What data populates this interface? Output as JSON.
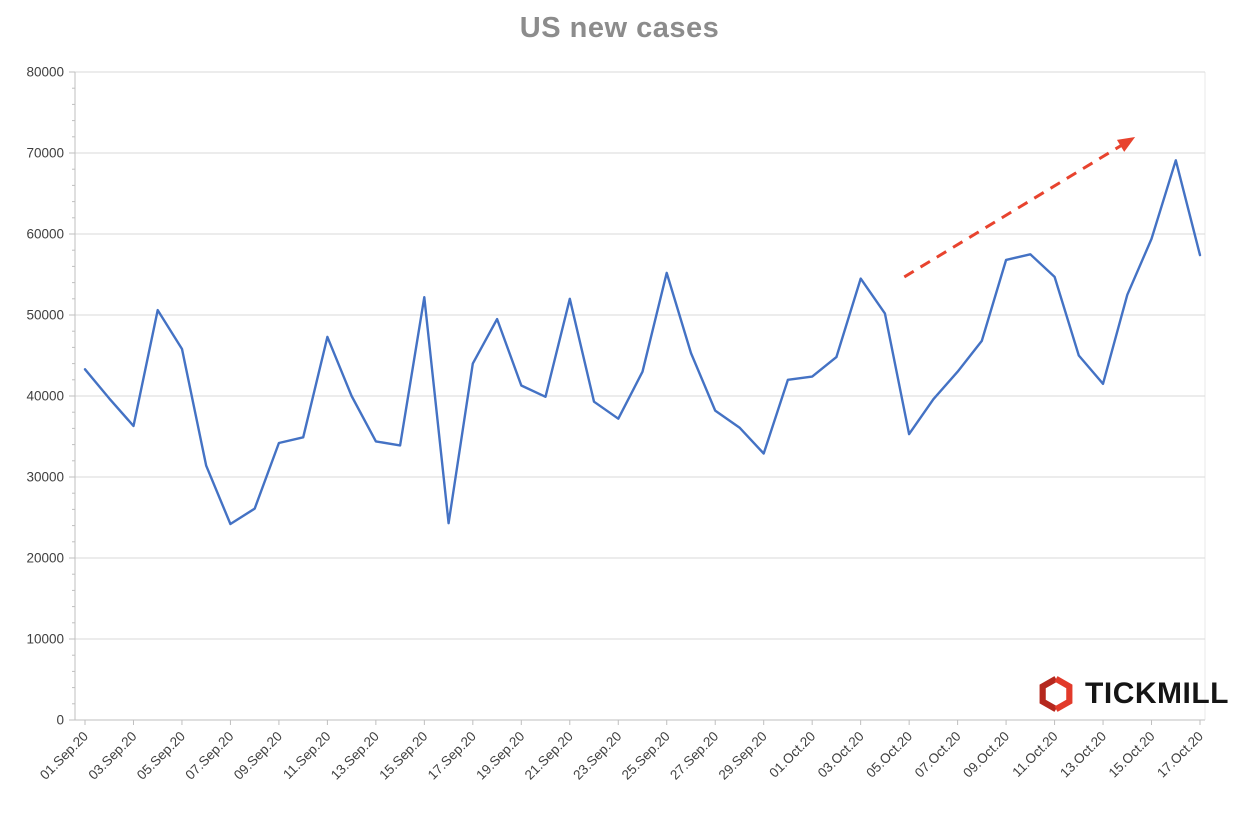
{
  "logo": {
    "text": "TICKMILL",
    "icon": "tickmill-hexagon-mark"
  },
  "colors": {
    "line": "#4472c4",
    "arrow": "#e8432e",
    "gridline": "#d9d9d9",
    "axis": "#bfbfbf",
    "tick_label": "#404040",
    "title": "#8c8c8c",
    "logo_red": "#e23a2a",
    "logo_dark_red": "#b5281e",
    "logo_text": "#151515"
  },
  "chart_data": {
    "type": "line",
    "title": "US new cases",
    "series_name": "US new cases",
    "x": [
      "01.Sep.20",
      "02.Sep.20",
      "03.Sep.20",
      "04.Sep.20",
      "05.Sep.20",
      "06.Sep.20",
      "07.Sep.20",
      "08.Sep.20",
      "09.Sep.20",
      "10.Sep.20",
      "11.Sep.20",
      "12.Sep.20",
      "13.Sep.20",
      "14.Sep.20",
      "15.Sep.20",
      "16.Sep.20",
      "17.Sep.20",
      "18.Sep.20",
      "19.Sep.20",
      "20.Sep.20",
      "21.Sep.20",
      "22.Sep.20",
      "23.Sep.20",
      "24.Sep.20",
      "25.Sep.20",
      "26.Sep.20",
      "27.Sep.20",
      "28.Sep.20",
      "29.Sep.20",
      "30.Sep.20",
      "01.Oct.20",
      "02.Oct.20",
      "03.Oct.20",
      "04.Oct.20",
      "05.Oct.20",
      "06.Oct.20",
      "07.Oct.20",
      "08.Oct.20",
      "09.Oct.20",
      "10.Oct.20",
      "11.Oct.20",
      "12.Oct.20",
      "13.Oct.20",
      "14.Oct.20",
      "15.Oct.20",
      "16.Oct.20",
      "17.Oct.20"
    ],
    "values": [
      43300,
      39700,
      36300,
      50600,
      45800,
      31400,
      24200,
      26100,
      34200,
      34900,
      47300,
      40000,
      34400,
      33900,
      52200,
      24300,
      44000,
      49500,
      41300,
      39900,
      52000,
      39300,
      37200,
      43000,
      55200,
      45300,
      38200,
      36100,
      32900,
      42000,
      42400,
      44800,
      54500,
      50200,
      35300,
      39600,
      43000,
      46800,
      56800,
      57500,
      54700,
      45000,
      41500,
      52500,
      59400,
      69100,
      57400
    ],
    "ylim": [
      0,
      80000
    ],
    "y_ticks": [
      0,
      10000,
      20000,
      30000,
      40000,
      50000,
      60000,
      70000,
      80000
    ],
    "x_tick_interval": 2,
    "grid": true,
    "legend": false,
    "annotation": {
      "type": "trend-arrow",
      "style": "dashed",
      "color": "#e8432e",
      "x1_index": 33.8,
      "y1": 54700,
      "x2_index": 42.9,
      "y2": 71200
    }
  }
}
